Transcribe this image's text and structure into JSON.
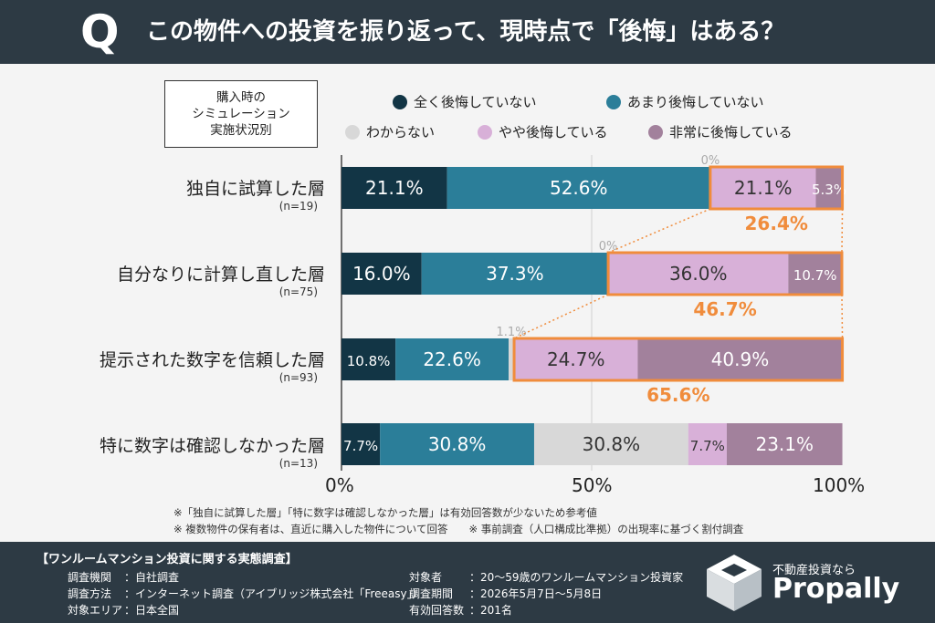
{
  "header": {
    "q_mark": "Q",
    "title": "この物件への投資を振り返って、現時点で「後悔」はある？"
  },
  "sim_box": {
    "line1": "購入時の",
    "line2": "シミュレーション",
    "line3": "実施状況別"
  },
  "colors": {
    "zenku": "#123545",
    "amari": "#2b7e99",
    "wakaranai": "#d8d8d8",
    "yaya": "#d8b0d8",
    "hijou": "#a2819c",
    "highlight": "#f08c3c"
  },
  "chart_data": {
    "type": "bar",
    "orientation": "horizontal",
    "stacked": true,
    "categories": [
      "独自に試算した層",
      "自分なりに計算し直した層",
      "提示された数字を信頼した層",
      "特に数字は確認しなかった層"
    ],
    "sample_sizes": [
      "(n=19)",
      "(n=75)",
      "(n=93)",
      "(n=13)"
    ],
    "series": [
      {
        "name": "全く後悔していない",
        "values": [
          21.1,
          16.0,
          10.8,
          7.7
        ],
        "labels": [
          "21.1%",
          "16.0%",
          "10.8%",
          "7.7%"
        ]
      },
      {
        "name": "あまり後悔していない",
        "values": [
          52.6,
          37.3,
          22.6,
          30.8
        ],
        "labels": [
          "52.6%",
          "37.3%",
          "22.6%",
          "30.8%"
        ]
      },
      {
        "name": "わからない",
        "values": [
          0,
          0,
          1.1,
          30.8
        ],
        "labels": [
          "0%",
          "0%",
          "1.1%",
          "30.8%"
        ]
      },
      {
        "name": "やや後悔している",
        "values": [
          21.1,
          36.0,
          24.7,
          7.7
        ],
        "labels": [
          "21.1%",
          "36.0%",
          "24.7%",
          "7.7%"
        ]
      },
      {
        "name": "非常に後悔している",
        "values": [
          5.3,
          10.7,
          40.9,
          23.1
        ],
        "labels": [
          "5.3%",
          "10.7%",
          "40.9%",
          "23.1%"
        ]
      }
    ],
    "regret_totals": [
      "26.4%",
      "46.7%",
      "65.6%"
    ],
    "x_ticks": [
      "0%",
      "50%",
      "100%"
    ],
    "xlim": [
      0,
      100
    ]
  },
  "notes": {
    "line1": "※「独自に試算した層」「特に数字は確認しなかった層」は有効回答数が少ないため参考値",
    "line2": "※ 複数物件の保有者は、直近に購入した物件について回答　　※ 事前調査（人口構成比準拠）の出現率に基づく割付調査"
  },
  "footer": {
    "title": "【ワンルームマンション投資に関する実態調査】",
    "left": [
      {
        "key": "調査機関",
        "value": "：自社調査"
      },
      {
        "key": "調査方法",
        "value": "：インターネット調査（アイブリッジ株式会社「Freeasy」）"
      },
      {
        "key": "対象エリア",
        "value": "：日本全国"
      }
    ],
    "right": [
      {
        "key": "対象者",
        "value": "：20〜59歳のワンルームマンション投資家"
      },
      {
        "key": "調査期間",
        "value": "：2026年5月7日〜5月8日"
      },
      {
        "key": "有効回答数",
        "value": "：201名"
      }
    ],
    "brand_tag": "不動産投資なら",
    "brand_name": "Propally"
  }
}
